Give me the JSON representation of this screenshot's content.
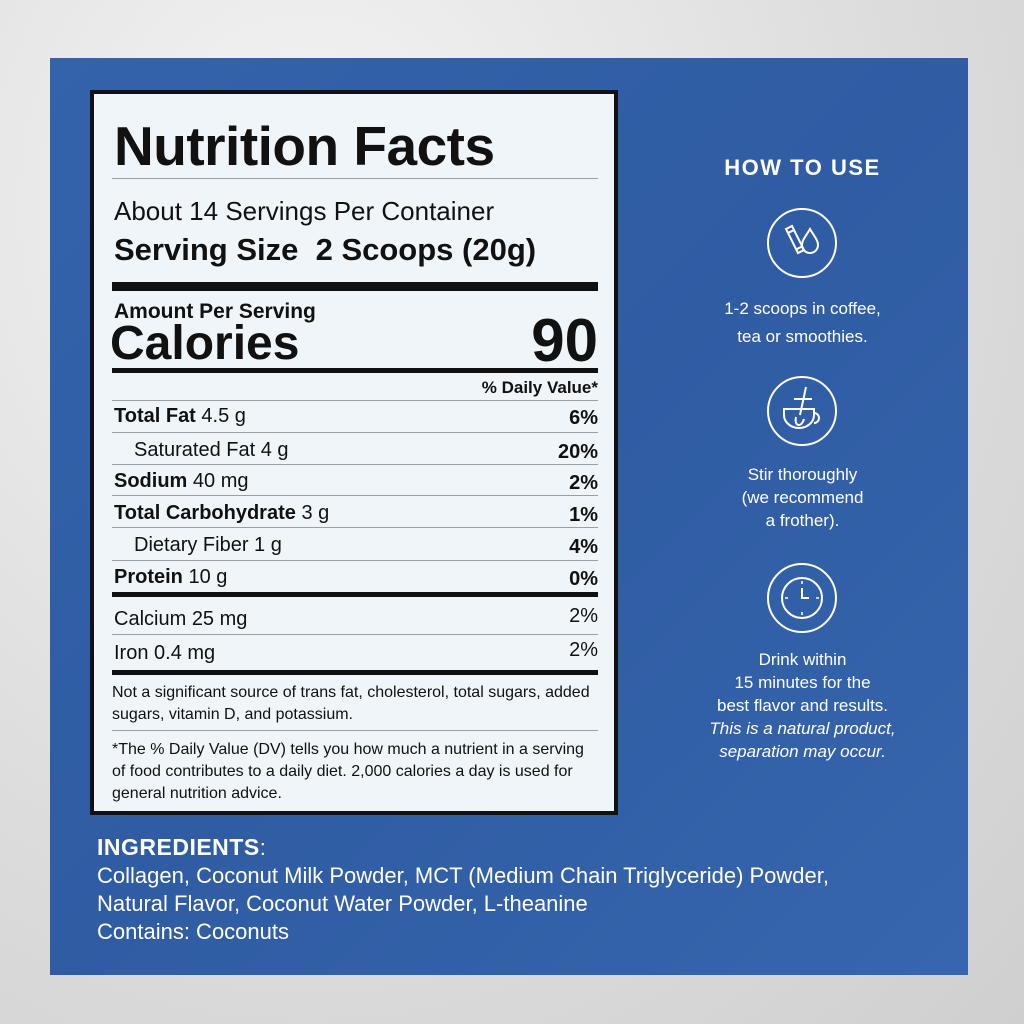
{
  "nutrition": {
    "title": "Nutrition Facts",
    "servings_per_container": "About 14 Servings Per Container",
    "serving_size_label": "Serving Size",
    "serving_size_value": "2 Scoops (20g)",
    "amount_per_serving": "Amount Per Serving",
    "calories_label": "Calories",
    "calories_value": "90",
    "daily_value_header": "% Daily Value*",
    "nutrients": [
      {
        "name": "Total Fat",
        "amount": "4.5 g",
        "dv": "6%"
      },
      {
        "name": "Saturated Fat",
        "amount": "4 g",
        "dv": "20%"
      },
      {
        "name": "Sodium",
        "amount": "40 mg",
        "dv": "2%"
      },
      {
        "name": "Total Carbohydrate",
        "amount": "3 g",
        "dv": "1%"
      },
      {
        "name": "Dietary Fiber",
        "amount": "1 g",
        "dv": "4%"
      },
      {
        "name": "Protein",
        "amount": "10 g",
        "dv": "0%"
      }
    ],
    "vitamins": [
      {
        "name": "Calcium",
        "amount": "25 mg",
        "dv": "2%"
      },
      {
        "name": "Iron",
        "amount": "0.4 mg",
        "dv": "2%"
      }
    ],
    "note": "Not a significant source of trans fat, cholesterol, total sugars, added sugars, vitamin D, and potassium.",
    "footnote": "*The % Daily Value (DV) tells you how much a nutrient in a serving of food contributes to a daily diet. 2,000 calories a day is used for general nutrition advice."
  },
  "how_to_use": {
    "title": "HOW TO USE",
    "steps": [
      {
        "icon": "stick-pack-drop-icon",
        "lines": [
          "1-2 scoops in coffee,",
          "tea or smoothies."
        ]
      },
      {
        "icon": "cup-spoon-icon",
        "lines": [
          "Stir thoroughly",
          "(we recommend",
          "a frother)."
        ]
      },
      {
        "icon": "clock-icon",
        "lines": [
          "Drink within",
          "15 minutes for the",
          "best flavor and results."
        ],
        "italic_lines": [
          "This is a natural product,",
          "separation may occur."
        ]
      }
    ]
  },
  "ingredients": {
    "heading": "INGREDIENTS",
    "lines": [
      "Collagen, Coconut Milk Powder, MCT (Medium Chain Triglyceride) Powder,",
      "Natural Flavor, Coconut Water Powder, L-theanine",
      "Contains: Coconuts"
    ]
  },
  "colors": {
    "panel_blue": "#3161a9",
    "label_bg": "#f0f5f9",
    "text_dark": "#111111"
  }
}
